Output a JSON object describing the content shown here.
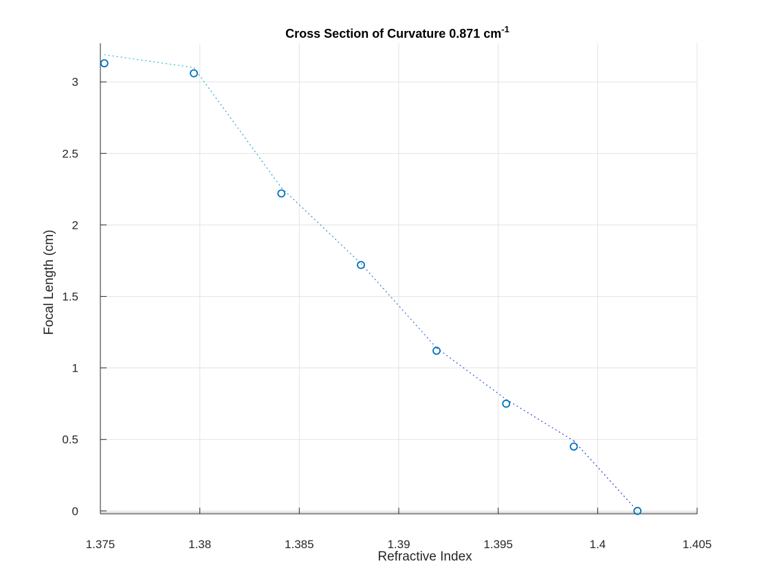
{
  "chart_data": {
    "type": "scatter",
    "title": "Cross Section of Curvature 0.871 cm",
    "title_superscript": "-1",
    "xlabel": "Refractive Index",
    "ylabel": "Focal Length (cm)",
    "xlim": [
      1.375,
      1.405
    ],
    "ylim": [
      -0.02,
      3.27
    ],
    "x_ticks": [
      "1.375",
      "1.38",
      "1.385",
      "1.39",
      "1.395",
      "1.4",
      "1.405"
    ],
    "x_tick_values": [
      1.375,
      1.38,
      1.385,
      1.39,
      1.395,
      1.4,
      1.405
    ],
    "y_ticks": [
      "0",
      "0.5",
      "1",
      "1.5",
      "2",
      "2.5",
      "3"
    ],
    "y_tick_values": [
      0,
      0.5,
      1,
      1.5,
      2,
      2.5,
      3
    ],
    "grid": true,
    "series": [
      {
        "marker": "circle",
        "color": "#0072BD",
        "x": [
          1.3752,
          1.3797,
          1.3841,
          1.3881,
          1.3919,
          1.3954,
          1.3988,
          1.402
        ],
        "y": [
          3.13,
          3.06,
          2.22,
          1.72,
          1.12,
          0.75,
          0.45,
          0.0
        ]
      },
      {
        "style": "dotted-line",
        "color_start": "#22B8CF",
        "color_end": "#2A2AD8",
        "x": [
          1.3752,
          1.3797,
          1.3841,
          1.3881,
          1.3919,
          1.3954,
          1.3988,
          1.402
        ],
        "y": [
          3.19,
          3.1,
          2.26,
          1.73,
          1.14,
          0.78,
          0.49,
          0.0
        ]
      }
    ]
  }
}
